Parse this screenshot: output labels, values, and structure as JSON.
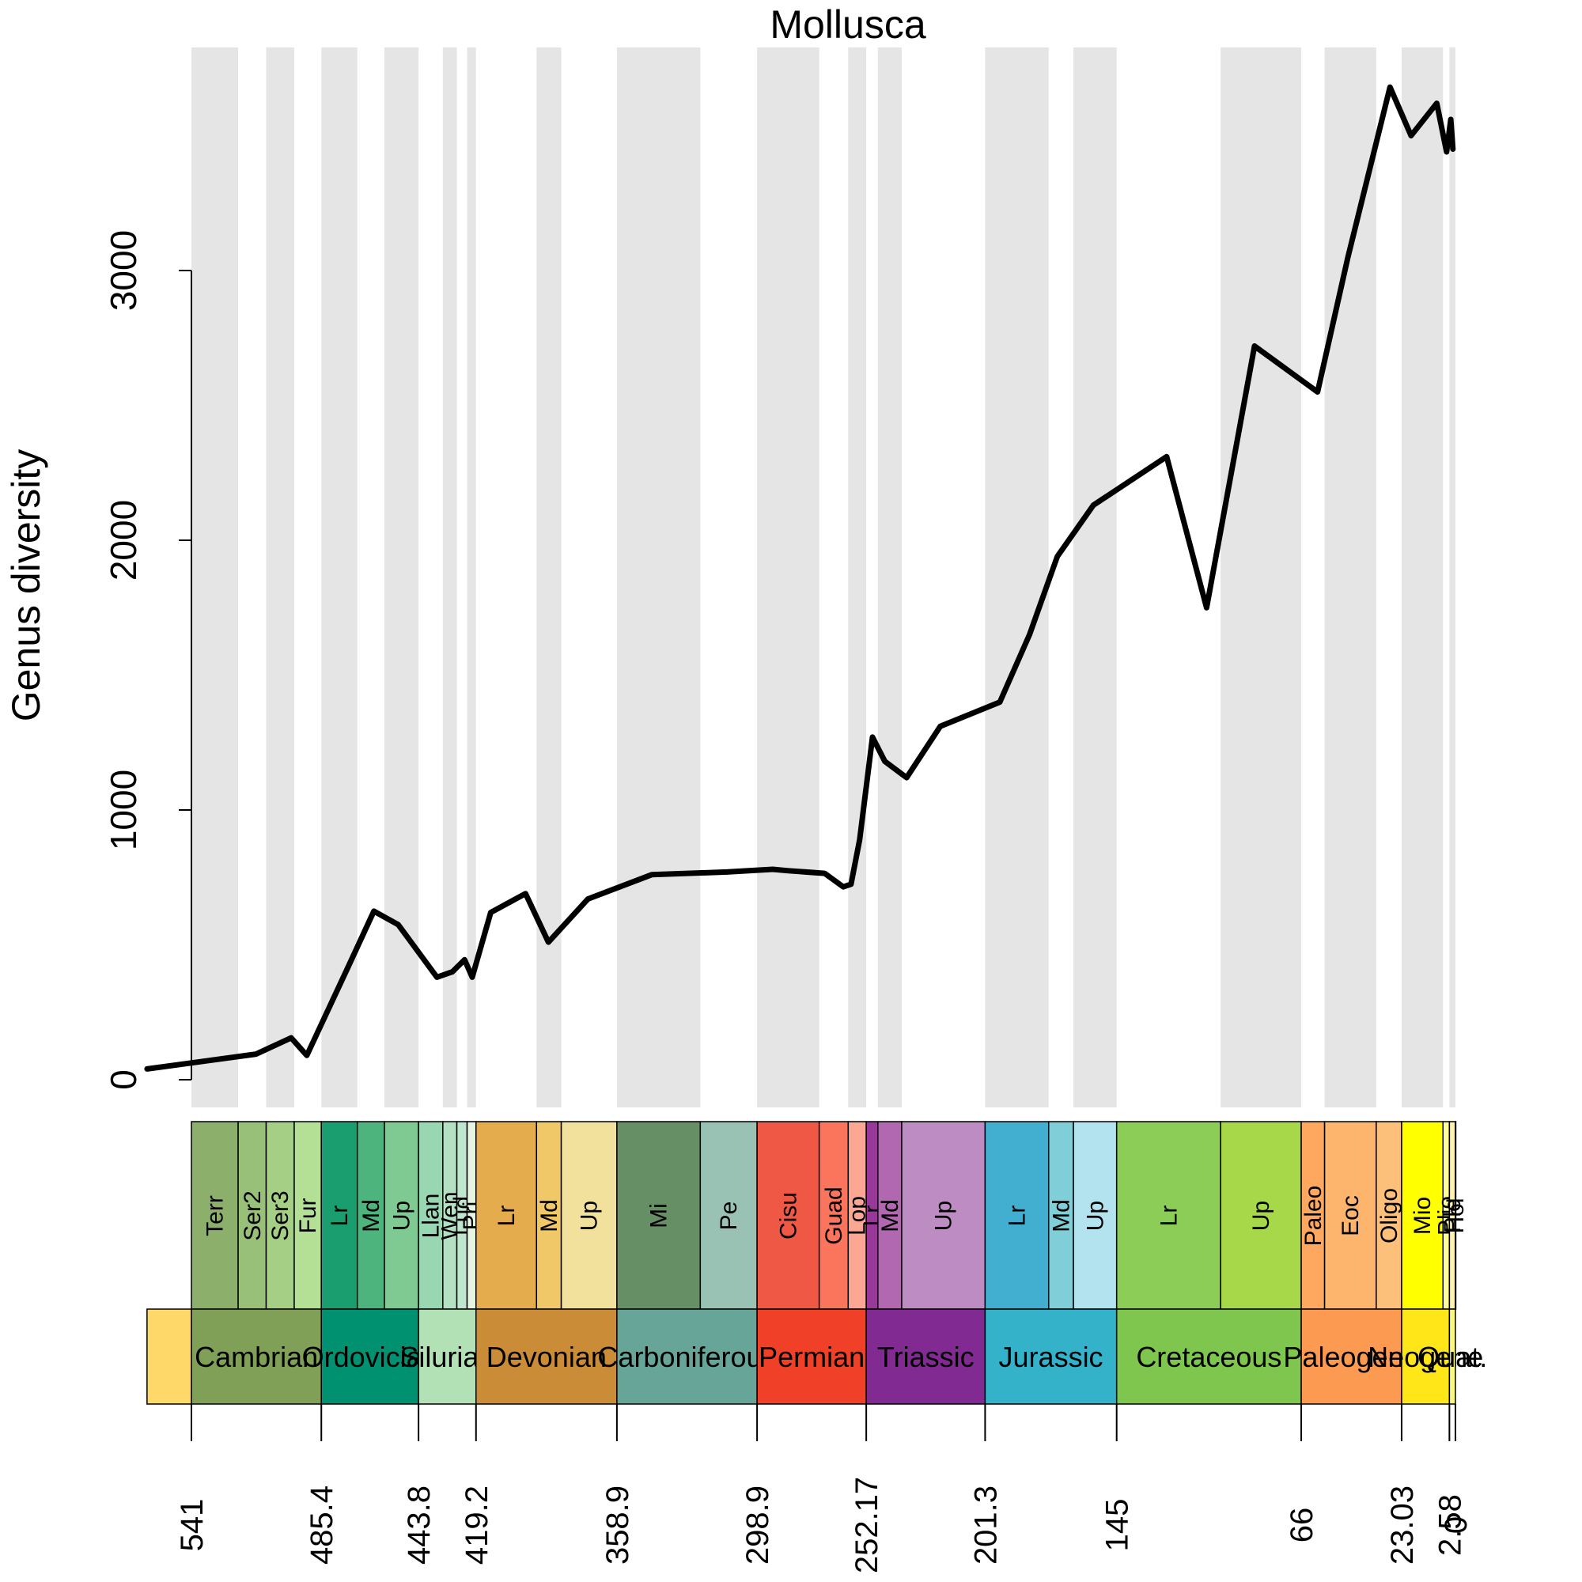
{
  "chart_data": {
    "type": "line",
    "title": "Mollusca",
    "xlabel": "",
    "ylabel": "Genus diversity",
    "xlim": [
      541,
      0
    ],
    "ylim": [
      0,
      3600
    ],
    "x_axis_reversed": true,
    "y_ticks": [
      "0",
      "1000",
      "2000",
      "3000"
    ],
    "x_tick_labels": [
      "541",
      "485.4",
      "443.8",
      "419.2",
      "358.9",
      "298.9",
      "252.17",
      "201.3",
      "145",
      "66",
      "23.03",
      "2.58",
      "0"
    ],
    "grid": false,
    "series": [
      {
        "color": "#000000",
        "x": [
          560,
          513.3,
          498.3,
          491.6,
          473.3,
          462.9,
          452.5,
          435.9,
          429.3,
          424.1,
          420.8,
          412.9,
          398.0,
          388.2,
          371.3,
          344.0,
          311.9,
          292.2,
          286.0,
          270.0,
          262.0,
          258.7,
          255.0,
          249.5,
          244.2,
          234.9,
          220.5,
          195.0,
          182.3,
          170.4,
          155.0,
          123.6,
          106.5,
          86.0,
          59.0,
          46.0,
          28.0,
          19.0,
          8.0,
          3.8,
          2.0,
          1.1
        ],
        "y": [
          40,
          95,
          155,
          90,
          430,
          625,
          575,
          380,
          400,
          445,
          380,
          620,
          690,
          510,
          670,
          760,
          770,
          780,
          775,
          765,
          715,
          725,
          890,
          1270,
          1180,
          1120,
          1310,
          1400,
          1650,
          1940,
          2130,
          2310,
          1750,
          2720,
          2550,
          3050,
          3680,
          3500,
          3620,
          3440,
          3560,
          3450
        ]
      }
    ],
    "stages": [
      {
        "name": "",
        "start": 560,
        "end": 541,
        "color": "#FED96A"
      },
      {
        "name": "Terr",
        "start": 541,
        "end": 521,
        "color": "#8CB06C"
      },
      {
        "name": "Ser2",
        "start": 521,
        "end": 509,
        "color": "#99C078"
      },
      {
        "name": "Ser3",
        "start": 509,
        "end": 497,
        "color": "#A6CF86"
      },
      {
        "name": "Fur",
        "start": 497,
        "end": 485.4,
        "color": "#B3E095"
      },
      {
        "name": "Lr",
        "start": 485.4,
        "end": 470,
        "color": "#1A9D6F"
      },
      {
        "name": "Md",
        "start": 470,
        "end": 458.4,
        "color": "#4DB47E"
      },
      {
        "name": "Up",
        "start": 458.4,
        "end": 443.8,
        "color": "#7FCA93"
      },
      {
        "name": "Llan",
        "start": 443.8,
        "end": 433.4,
        "color": "#99D7B3"
      },
      {
        "name": "Wen",
        "start": 433.4,
        "end": 427.4,
        "color": "#B3E1C2"
      },
      {
        "name": "Lud",
        "start": 427.4,
        "end": 423,
        "color": "#BFE6CF"
      },
      {
        "name": "Pri",
        "start": 423,
        "end": 419.2,
        "color": "#E6F5E1"
      },
      {
        "name": "Lr",
        "start": 419.2,
        "end": 393.3,
        "color": "#E5AC4D"
      },
      {
        "name": "Md",
        "start": 393.3,
        "end": 382.7,
        "color": "#F1C868"
      },
      {
        "name": "Up",
        "start": 382.7,
        "end": 358.9,
        "color": "#F1E19D"
      },
      {
        "name": "Mi",
        "start": 358.9,
        "end": 323.2,
        "color": "#678F66"
      },
      {
        "name": "Pe",
        "start": 323.2,
        "end": 298.9,
        "color": "#99C2B5"
      },
      {
        "name": "Cisu",
        "start": 298.9,
        "end": 272.3,
        "color": "#EF5845"
      },
      {
        "name": "Guad",
        "start": 272.3,
        "end": 259.9,
        "color": "#FB745C"
      },
      {
        "name": "Lop",
        "start": 259.9,
        "end": 252.17,
        "color": "#FBA794"
      },
      {
        "name": "Lr",
        "start": 252.17,
        "end": 247.2,
        "color": "#983999"
      },
      {
        "name": "Md",
        "start": 247.2,
        "end": 237,
        "color": "#B168B1"
      },
      {
        "name": "Up",
        "start": 237,
        "end": 201.3,
        "color": "#BD8CC3"
      },
      {
        "name": "Lr",
        "start": 201.3,
        "end": 174.1,
        "color": "#42AED0"
      },
      {
        "name": "Md",
        "start": 174.1,
        "end": 163.5,
        "color": "#80CFD8"
      },
      {
        "name": "Up",
        "start": 163.5,
        "end": 145,
        "color": "#B3E3EE"
      },
      {
        "name": "Lr",
        "start": 145,
        "end": 100.5,
        "color": "#8CCD57"
      },
      {
        "name": "Up",
        "start": 100.5,
        "end": 66,
        "color": "#A6D84A"
      },
      {
        "name": "Paleo",
        "start": 66,
        "end": 56,
        "color": "#FDA75F"
      },
      {
        "name": "Eoc",
        "start": 56,
        "end": 33.9,
        "color": "#FDB46C"
      },
      {
        "name": "Oligo",
        "start": 33.9,
        "end": 23.03,
        "color": "#FDC07A"
      },
      {
        "name": "Mio",
        "start": 23.03,
        "end": 5.333,
        "color": "#FFFF00"
      },
      {
        "name": "Plio",
        "start": 5.333,
        "end": 2.58,
        "color": "#FFFF99"
      },
      {
        "name": "Ple",
        "start": 2.58,
        "end": 0.0117,
        "color": "#FFF2AE"
      },
      {
        "name": "Hol",
        "start": 0.0117,
        "end": 0,
        "color": "#FEF2E0"
      }
    ],
    "periods": [
      {
        "name": "",
        "start": 560,
        "end": 541,
        "color": "#FED96A"
      },
      {
        "name": "Cambrian",
        "start": 541,
        "end": 485.4,
        "color": "#7FA056"
      },
      {
        "name": "Ordovician",
        "start": 485.4,
        "end": 443.8,
        "color": "#009270"
      },
      {
        "name": "Silurian",
        "start": 443.8,
        "end": 419.2,
        "color": "#B3E1B6"
      },
      {
        "name": "Devonian",
        "start": 419.2,
        "end": 358.9,
        "color": "#CB8C37"
      },
      {
        "name": "Carboniferous",
        "start": 358.9,
        "end": 298.9,
        "color": "#67A599"
      },
      {
        "name": "Permian",
        "start": 298.9,
        "end": 252.17,
        "color": "#F04028"
      },
      {
        "name": "Triassic",
        "start": 252.17,
        "end": 201.3,
        "color": "#812B92"
      },
      {
        "name": "Jurassic",
        "start": 201.3,
        "end": 145,
        "color": "#34B2C9"
      },
      {
        "name": "Cretaceous",
        "start": 145,
        "end": 66,
        "color": "#7FC64E"
      },
      {
        "name": "Paleogene",
        "start": 66,
        "end": 23.03,
        "color": "#FD9A52"
      },
      {
        "name": "Neogene",
        "start": 23.03,
        "end": 2.58,
        "color": "#FFE619"
      },
      {
        "name": "Quat.",
        "start": 2.58,
        "end": 0,
        "color": "#F9F97F"
      }
    ],
    "shaded_bands_color": "#E5E5E5"
  }
}
